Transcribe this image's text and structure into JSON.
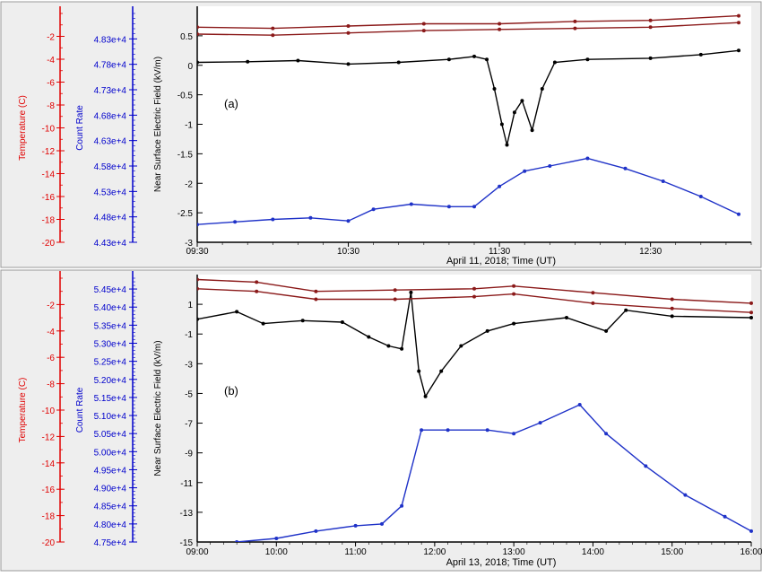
{
  "colors": {
    "temperature": "#e00000",
    "count_rate": "#0000cc",
    "efield": "#000000",
    "temp_series": "#8b1a1a",
    "count_series": "#1f32c8"
  },
  "chart_data": [
    {
      "type": "line",
      "panel_label": "(a)",
      "xlabel": "April 11, 2018; Time (UT)",
      "ylabel": "Near Surface Electric Field (kV/m)",
      "xlim": [
        "09:30",
        "13:10"
      ],
      "x_ticks": [
        "09:30",
        "10:30",
        "11:30",
        "12:30"
      ],
      "ylim": [
        -3,
        1
      ],
      "y_ticks": [
        "0.5",
        "0",
        "-0.5",
        "-1",
        "-1.5",
        "-2",
        "-2.5",
        "-3"
      ],
      "temperature_axis": {
        "label": "Temperature (C)",
        "ticks": [
          "-2",
          "-4",
          "-6",
          "-8",
          "-10",
          "-12",
          "-14",
          "-16",
          "-18",
          "-20"
        ],
        "range": [
          -20,
          0
        ]
      },
      "count_rate_axis": {
        "label": "Count Rate",
        "ticks": [
          "4.83e+4",
          "4.78e+4",
          "4.73e+4",
          "4.68e+4",
          "4.63e+4",
          "4.58e+4",
          "4.53e+4",
          "4.48e+4",
          "4.43e+4"
        ],
        "range": [
          44300,
          48800
        ]
      },
      "series": [
        {
          "kind": "efield",
          "unit": "kV/m",
          "points": [
            [
              "09:30",
              0.05
            ],
            [
              "09:50",
              0.06
            ],
            [
              "10:10",
              0.08
            ],
            [
              "10:30",
              0.02
            ],
            [
              "10:50",
              0.05
            ],
            [
              "11:10",
              0.1
            ],
            [
              "11:20",
              0.15
            ],
            [
              "11:25",
              0.1
            ],
            [
              "11:28",
              -0.4
            ],
            [
              "11:31",
              -1.0
            ],
            [
              "11:33",
              -1.35
            ],
            [
              "11:36",
              -0.8
            ],
            [
              "11:39",
              -0.6
            ],
            [
              "11:43",
              -1.1
            ],
            [
              "11:47",
              -0.4
            ],
            [
              "11:52",
              0.05
            ],
            [
              "12:05",
              0.1
            ],
            [
              "12:30",
              0.12
            ],
            [
              "12:50",
              0.18
            ],
            [
              "13:05",
              0.25
            ]
          ]
        },
        {
          "kind": "count_rate",
          "unit": "counts",
          "points": [
            [
              "09:30",
              44650
            ],
            [
              "09:45",
              44700
            ],
            [
              "10:00",
              44750
            ],
            [
              "10:15",
              44780
            ],
            [
              "10:30",
              44720
            ],
            [
              "10:40",
              44950
            ],
            [
              "10:55",
              45050
            ],
            [
              "11:10",
              45000
            ],
            [
              "11:20",
              45000
            ],
            [
              "11:30",
              45400
            ],
            [
              "11:40",
              45700
            ],
            [
              "11:50",
              45800
            ],
            [
              "12:05",
              45950
            ],
            [
              "12:20",
              45750
            ],
            [
              "12:35",
              45500
            ],
            [
              "12:50",
              45200
            ],
            [
              "13:05",
              44850
            ]
          ]
        },
        {
          "kind": "temperature",
          "unit": "C",
          "points": [
            [
              "09:30",
              -1.2
            ],
            [
              "10:00",
              -1.3
            ],
            [
              "10:30",
              -1.1
            ],
            [
              "11:00",
              -0.9
            ],
            [
              "11:30",
              -0.9
            ],
            [
              "12:00",
              -0.7
            ],
            [
              "12:30",
              -0.6
            ],
            [
              "13:05",
              -0.2
            ]
          ]
        },
        {
          "kind": "temperature",
          "unit": "C",
          "points": [
            [
              "09:30",
              -1.8
            ],
            [
              "10:00",
              -1.9
            ],
            [
              "10:30",
              -1.7
            ],
            [
              "11:00",
              -1.5
            ],
            [
              "11:30",
              -1.4
            ],
            [
              "12:00",
              -1.3
            ],
            [
              "12:30",
              -1.2
            ],
            [
              "13:05",
              -0.8
            ]
          ]
        }
      ]
    },
    {
      "type": "line",
      "panel_label": "(b)",
      "xlabel": "April 13, 2018; Time (UT)",
      "ylabel": "Near Surface Electric Field (kV/m)",
      "xlim": [
        "09:00",
        "16:00"
      ],
      "x_ticks": [
        "09:00",
        "10:00",
        "11:00",
        "12:00",
        "13:00",
        "14:00",
        "15:00",
        "16:00"
      ],
      "ylim": [
        -15,
        3
      ],
      "y_ticks": [
        "1",
        "-1",
        "-3",
        "-5",
        "-7",
        "-9",
        "-11",
        "-13",
        "-15"
      ],
      "temperature_axis": {
        "label": "Temperature (C)",
        "ticks": [
          "-2",
          "-4",
          "-6",
          "-8",
          "-10",
          "-12",
          "-14",
          "-16",
          "-18",
          "-20"
        ],
        "range": [
          -20,
          0
        ]
      },
      "count_rate_axis": {
        "label": "Count Rate",
        "ticks": [
          "5.45e+4",
          "5.40e+4",
          "5.35e+4",
          "5.30e+4",
          "5.25e+4",
          "5.20e+4",
          "5.15e+4",
          "5.10e+4",
          "5.05e+4",
          "5.00e+4",
          "4.95e+4",
          "4.90e+4",
          "4.85e+4",
          "4.80e+4",
          "4.75e+4"
        ],
        "range": [
          47500,
          54800
        ]
      },
      "series": [
        {
          "kind": "efield",
          "unit": "kV/m",
          "points": [
            [
              "09:00",
              0.0
            ],
            [
              "09:30",
              0.5
            ],
            [
              "09:50",
              -0.3
            ],
            [
              "10:20",
              -0.1
            ],
            [
              "10:50",
              -0.2
            ],
            [
              "11:10",
              -1.2
            ],
            [
              "11:25",
              -1.8
            ],
            [
              "11:35",
              -2.0
            ],
            [
              "11:42",
              1.8
            ],
            [
              "11:48",
              -3.5
            ],
            [
              "11:53",
              -5.2
            ],
            [
              "12:05",
              -3.5
            ],
            [
              "12:20",
              -1.8
            ],
            [
              "12:40",
              -0.8
            ],
            [
              "13:00",
              -0.3
            ],
            [
              "13:40",
              0.1
            ],
            [
              "14:10",
              -0.8
            ],
            [
              "14:25",
              0.6
            ],
            [
              "15:00",
              0.2
            ],
            [
              "16:00",
              0.1
            ]
          ]
        },
        {
          "kind": "count_rate",
          "unit": "counts",
          "points": [
            [
              "09:30",
              47500
            ],
            [
              "10:00",
              47600
            ],
            [
              "10:30",
              47800
            ],
            [
              "11:00",
              47950
            ],
            [
              "11:20",
              48000
            ],
            [
              "11:35",
              48500
            ],
            [
              "11:50",
              50600
            ],
            [
              "12:10",
              50600
            ],
            [
              "12:40",
              50600
            ],
            [
              "13:00",
              50500
            ],
            [
              "13:20",
              50800
            ],
            [
              "13:50",
              51300
            ],
            [
              "14:10",
              50500
            ],
            [
              "14:40",
              49600
            ],
            [
              "15:10",
              48800
            ],
            [
              "15:40",
              48200
            ],
            [
              "16:00",
              47800
            ]
          ]
        },
        {
          "kind": "temperature",
          "unit": "C",
          "points": [
            [
              "09:00",
              -0.1
            ],
            [
              "09:45",
              -0.3
            ],
            [
              "10:30",
              -1.0
            ],
            [
              "11:30",
              -0.9
            ],
            [
              "12:30",
              -0.8
            ],
            [
              "13:00",
              -0.6
            ],
            [
              "14:00",
              -1.1
            ],
            [
              "15:00",
              -1.6
            ],
            [
              "16:00",
              -1.9
            ]
          ]
        },
        {
          "kind": "temperature",
          "unit": "C",
          "points": [
            [
              "09:00",
              -0.8
            ],
            [
              "09:45",
              -1.0
            ],
            [
              "10:30",
              -1.6
            ],
            [
              "11:30",
              -1.6
            ],
            [
              "12:30",
              -1.4
            ],
            [
              "13:00",
              -1.2
            ],
            [
              "14:00",
              -1.9
            ],
            [
              "15:00",
              -2.3
            ],
            [
              "16:00",
              -2.6
            ]
          ]
        }
      ]
    }
  ]
}
